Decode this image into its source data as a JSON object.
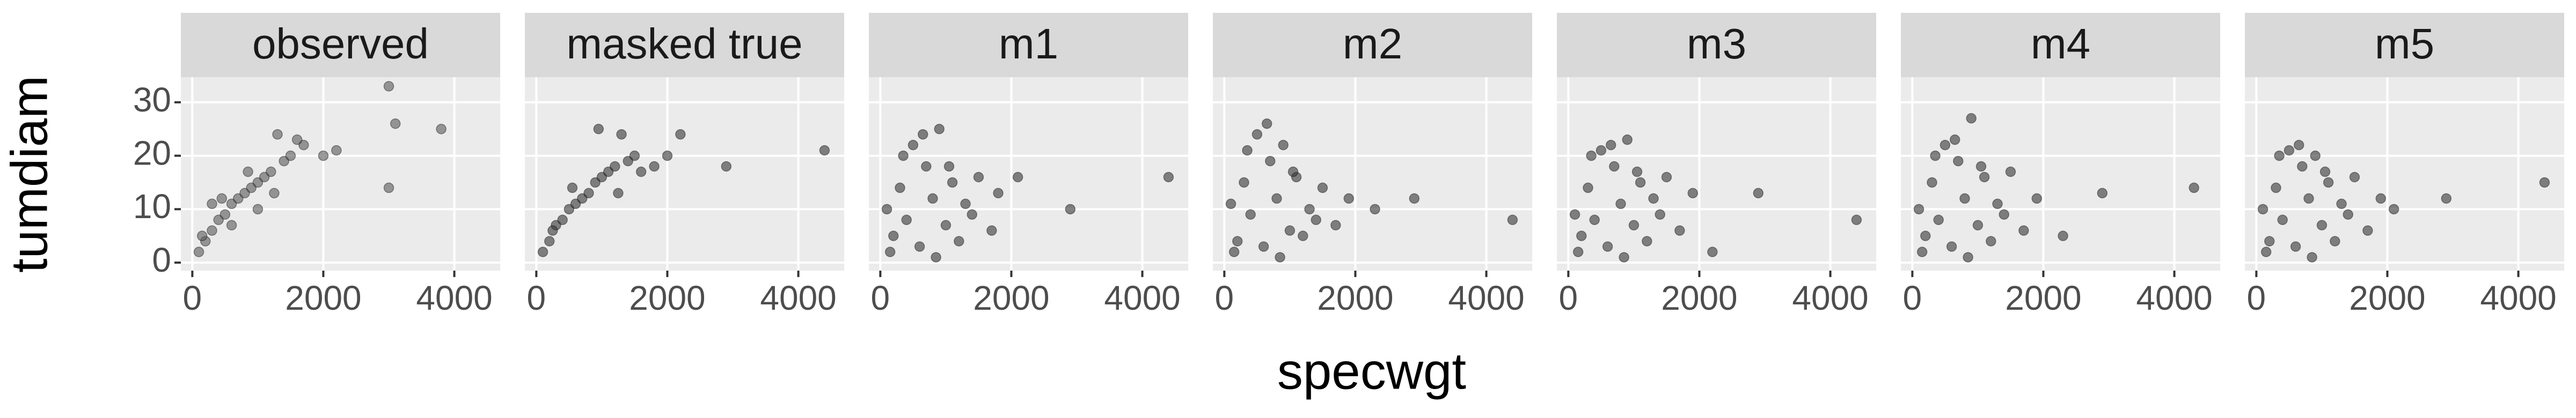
{
  "chart_data": {
    "type": "scatter",
    "xlabel": "specwgt",
    "ylabel": "tumdiam",
    "xlim": [
      -175,
      4700
    ],
    "ylim": [
      -1.5,
      34.7
    ],
    "xticks": [
      0,
      2000,
      4000
    ],
    "yticks": [
      0,
      10,
      20,
      30
    ],
    "grid": true,
    "panels": [
      {
        "name": "observed",
        "color": "#595959",
        "x": [
          100,
          200,
          300,
          300,
          400,
          500,
          600,
          600,
          700,
          800,
          900,
          1000,
          1000,
          1100,
          1200,
          1300,
          1400,
          1500,
          1700,
          2000,
          2200,
          3000,
          3000,
          3100,
          3800,
          150,
          450,
          850,
          1250,
          1600
        ],
        "y": [
          2,
          4,
          6,
          11,
          8,
          9,
          11,
          7,
          12,
          13,
          14,
          15,
          10,
          16,
          17,
          24,
          19,
          20,
          22,
          20,
          21,
          33,
          14,
          26,
          25,
          5,
          12,
          17,
          13,
          23
        ]
      },
      {
        "name": "masked true",
        "color": "#333333",
        "x": [
          100,
          200,
          300,
          400,
          500,
          600,
          700,
          800,
          900,
          1000,
          1100,
          1200,
          1300,
          1400,
          1500,
          1600,
          1800,
          2000,
          2200,
          2900,
          4400,
          250,
          550,
          950,
          1250
        ],
        "y": [
          2,
          4,
          7,
          8,
          10,
          11,
          12,
          13,
          15,
          16,
          17,
          18,
          24,
          19,
          20,
          17,
          18,
          20,
          24,
          18,
          21,
          6,
          14,
          25,
          13
        ]
      },
      {
        "name": "m1",
        "color": "#333333",
        "x": [
          100,
          200,
          300,
          400,
          500,
          600,
          700,
          800,
          900,
          1000,
          1100,
          1200,
          1300,
          1400,
          1500,
          1700,
          1800,
          2100,
          2900,
          4400,
          150,
          350,
          650,
          850,
          1050
        ],
        "y": [
          10,
          5,
          14,
          8,
          22,
          3,
          18,
          12,
          25,
          7,
          15,
          4,
          11,
          9,
          16,
          6,
          13,
          16,
          10,
          16,
          2,
          20,
          24,
          1,
          18
        ]
      },
      {
        "name": "m2",
        "color": "#333333",
        "x": [
          100,
          200,
          300,
          400,
          500,
          600,
          700,
          800,
          900,
          1000,
          1100,
          1200,
          1300,
          1400,
          1500,
          1700,
          1900,
          2300,
          2900,
          4400,
          150,
          350,
          650,
          850,
          1050
        ],
        "y": [
          11,
          4,
          15,
          9,
          24,
          3,
          19,
          12,
          22,
          6,
          16,
          5,
          10,
          8,
          14,
          7,
          12,
          10,
          12,
          8,
          2,
          21,
          26,
          1,
          17
        ]
      },
      {
        "name": "m3",
        "color": "#333333",
        "x": [
          100,
          200,
          300,
          400,
          500,
          600,
          700,
          800,
          900,
          1000,
          1100,
          1200,
          1300,
          1400,
          1500,
          1700,
          1900,
          2200,
          2900,
          4400,
          150,
          350,
          650,
          850,
          1050
        ],
        "y": [
          9,
          5,
          14,
          8,
          21,
          3,
          18,
          11,
          23,
          7,
          15,
          4,
          12,
          9,
          16,
          6,
          13,
          2,
          13,
          8,
          2,
          20,
          22,
          1,
          17
        ]
      },
      {
        "name": "m4",
        "color": "#333333",
        "x": [
          100,
          200,
          300,
          400,
          500,
          600,
          700,
          800,
          900,
          1000,
          1100,
          1200,
          1300,
          1400,
          1500,
          1700,
          1900,
          2300,
          2900,
          4300,
          150,
          350,
          650,
          850,
          1050
        ],
        "y": [
          10,
          5,
          15,
          8,
          22,
          3,
          19,
          12,
          27,
          7,
          16,
          4,
          11,
          9,
          17,
          6,
          12,
          5,
          13,
          14,
          2,
          20,
          23,
          1,
          18
        ]
      },
      {
        "name": "m5",
        "color": "#333333",
        "x": [
          100,
          200,
          300,
          400,
          500,
          600,
          700,
          800,
          900,
          1000,
          1100,
          1200,
          1300,
          1400,
          1500,
          1700,
          1900,
          2100,
          2900,
          4400,
          150,
          350,
          650,
          850,
          1050
        ],
        "y": [
          10,
          4,
          14,
          8,
          21,
          3,
          18,
          12,
          20,
          7,
          15,
          4,
          11,
          9,
          16,
          6,
          12,
          10,
          12,
          15,
          2,
          20,
          22,
          1,
          17
        ]
      }
    ]
  }
}
